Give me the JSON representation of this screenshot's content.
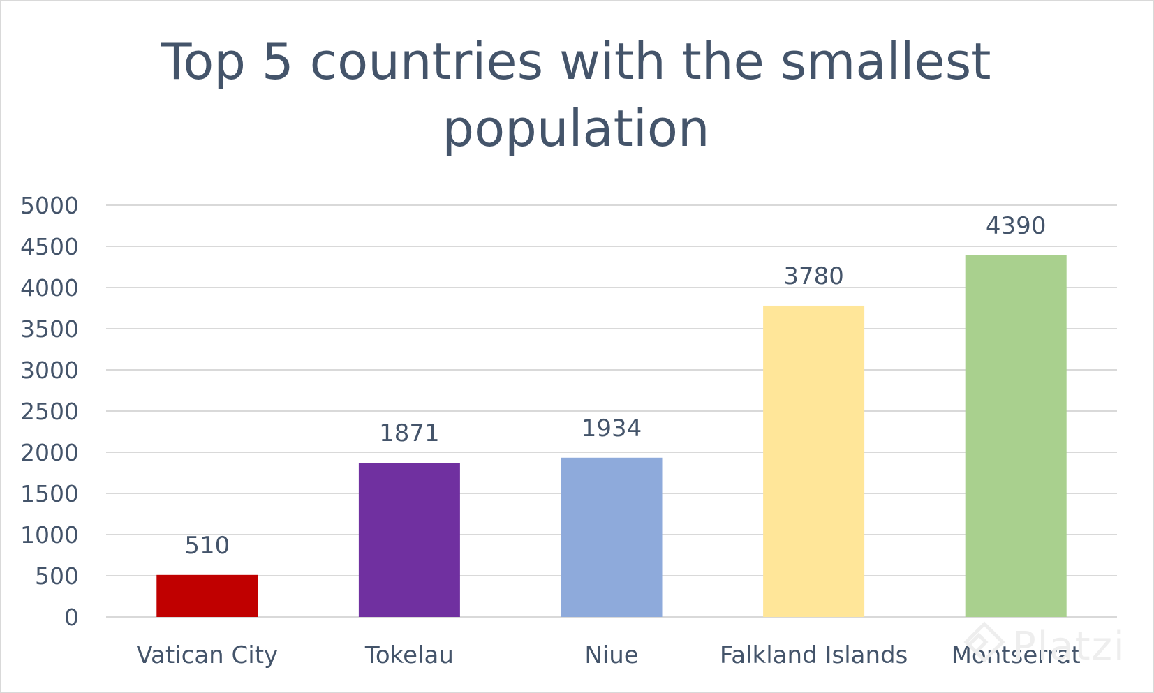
{
  "chart_data": {
    "type": "bar",
    "title": "Top 5 countries with the smallest population",
    "categories": [
      "Vatican City",
      "Tokelau",
      "Niue",
      "Falkland Islands",
      "Montserrat"
    ],
    "values": [
      510,
      1871,
      1934,
      3780,
      4390
    ],
    "data_labels": [
      "510",
      "1871",
      "1934",
      "3780",
      "4390"
    ],
    "colors": [
      "#c00000",
      "#7030a0",
      "#8eaadb",
      "#ffe699",
      "#a9d08e"
    ],
    "xlabel": "",
    "ylabel": "",
    "ylim": [
      0,
      5000
    ],
    "yticks": [
      0,
      500,
      1000,
      1500,
      2000,
      2500,
      3000,
      3500,
      4000,
      4500,
      5000
    ],
    "ytick_labels": [
      "0",
      "500",
      "1000",
      "1500",
      "2000",
      "2500",
      "3000",
      "3500",
      "4000",
      "4500",
      "5000"
    ],
    "grid": true,
    "legend": "none"
  },
  "watermark": {
    "text": "Platzi",
    "icon": "platzi-logo-icon"
  },
  "colors": {
    "text": "#44546a",
    "gridline": "#d9d9d9",
    "frame": "#d9d9d9"
  }
}
